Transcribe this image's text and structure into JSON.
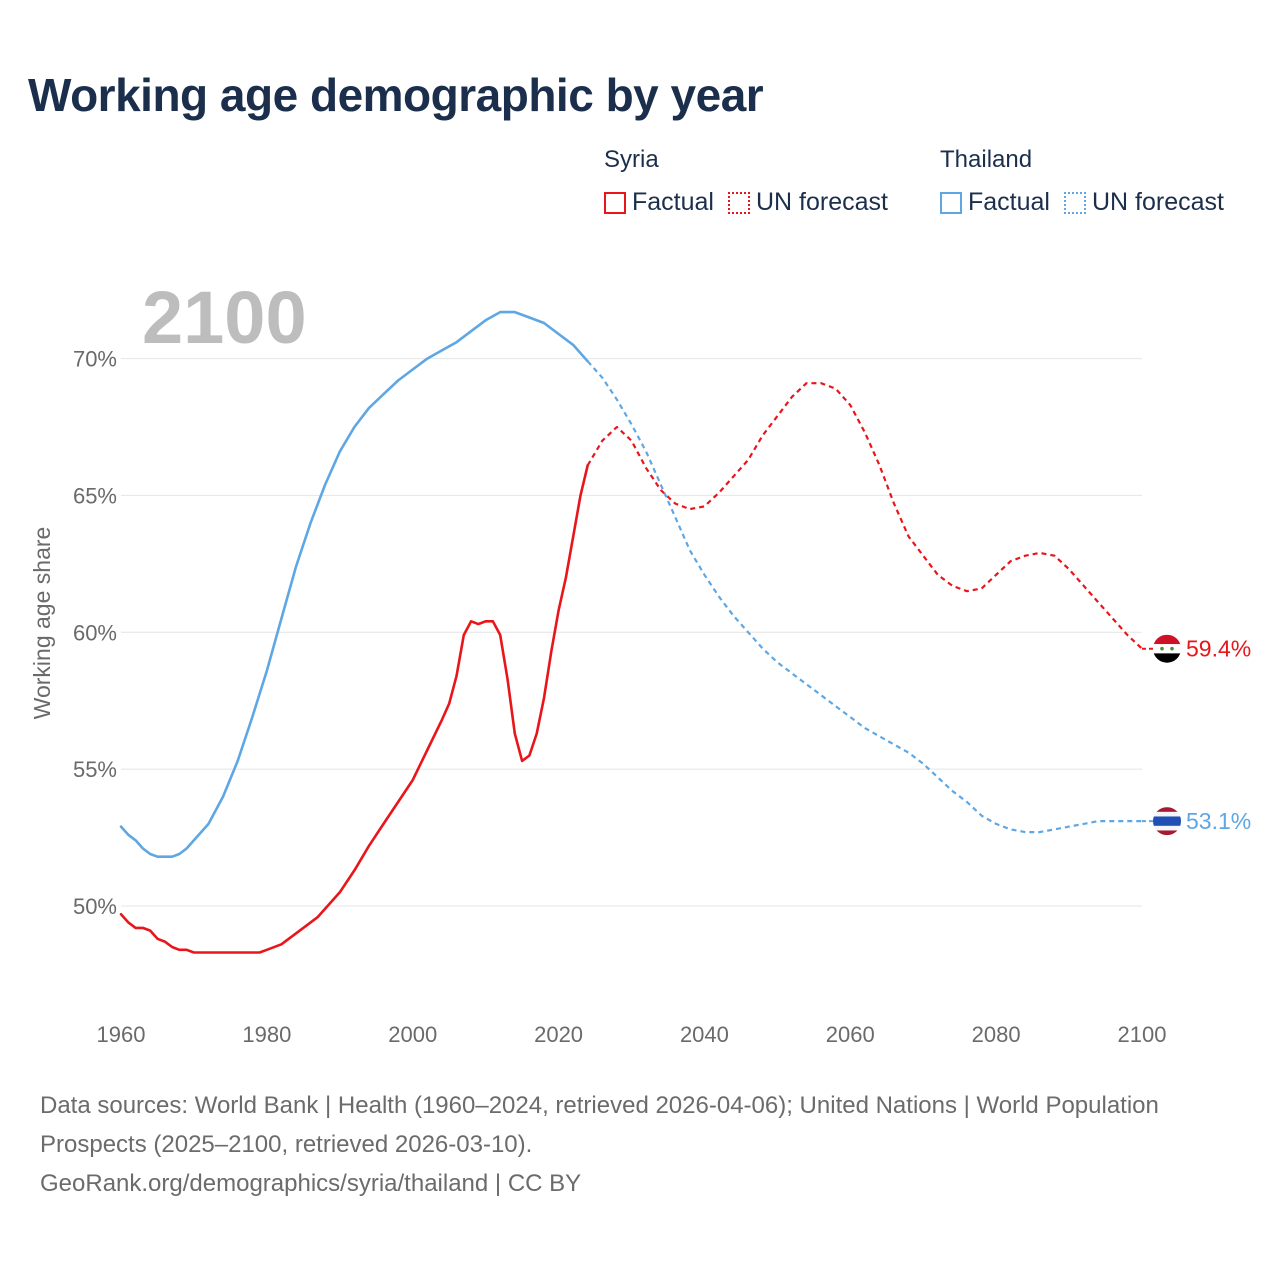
{
  "title": "Working age demographic by year",
  "legend": [
    {
      "country": "Syria",
      "color": "#e8161b",
      "factual_label": "Factual",
      "forecast_label": "UN forecast"
    },
    {
      "country": "Thailand",
      "color": "#5ea7e4",
      "factual_label": "Factual",
      "forecast_label": "UN forecast"
    }
  ],
  "sources_text": "Data sources: World Bank | Health (1960–2024, retrieved 2026-04-06); United Nations | World Population Prospects (2025–2100, retrieved 2026-03-10).",
  "url_text": "GeoRank.org/demographics/syria/thailand | CC BY",
  "chart_data": {
    "type": "line",
    "year_label": "2100",
    "ylabel": "Working age share",
    "xlim": [
      1960,
      2100
    ],
    "ylim": [
      46.2,
      73.2
    ],
    "x_ticks": [
      1960,
      1980,
      2000,
      2020,
      2040,
      2060,
      2080,
      2100
    ],
    "y_ticks": [
      50,
      55,
      60,
      65,
      70
    ],
    "y_tick_labels": [
      "50%",
      "55%",
      "60%",
      "65%",
      "70%"
    ],
    "forecast_start": 2024,
    "grid": true,
    "series": [
      {
        "name": "Syria",
        "color": "#e8161b",
        "end_label": "59.4%",
        "flag": "syria-flag-icon",
        "points": [
          [
            1960,
            49.7
          ],
          [
            1961,
            49.4
          ],
          [
            1962,
            49.2
          ],
          [
            1963,
            49.2
          ],
          [
            1964,
            49.1
          ],
          [
            1965,
            48.8
          ],
          [
            1966,
            48.7
          ],
          [
            1967,
            48.5
          ],
          [
            1968,
            48.4
          ],
          [
            1969,
            48.4
          ],
          [
            1970,
            48.3
          ],
          [
            1972,
            48.3
          ],
          [
            1975,
            48.3
          ],
          [
            1979,
            48.3
          ],
          [
            1980,
            48.4
          ],
          [
            1982,
            48.6
          ],
          [
            1985,
            49.2
          ],
          [
            1987,
            49.6
          ],
          [
            1990,
            50.5
          ],
          [
            1992,
            51.3
          ],
          [
            1994,
            52.2
          ],
          [
            1996,
            53.0
          ],
          [
            1998,
            53.8
          ],
          [
            2000,
            54.6
          ],
          [
            2002,
            55.7
          ],
          [
            2004,
            56.8
          ],
          [
            2005,
            57.4
          ],
          [
            2006,
            58.4
          ],
          [
            2007,
            59.9
          ],
          [
            2008,
            60.4
          ],
          [
            2009,
            60.3
          ],
          [
            2010,
            60.4
          ],
          [
            2011,
            60.4
          ],
          [
            2012,
            59.9
          ],
          [
            2013,
            58.3
          ],
          [
            2014,
            56.3
          ],
          [
            2015,
            55.3
          ],
          [
            2016,
            55.5
          ],
          [
            2017,
            56.3
          ],
          [
            2018,
            57.6
          ],
          [
            2019,
            59.3
          ],
          [
            2020,
            60.8
          ],
          [
            2021,
            62.0
          ],
          [
            2022,
            63.5
          ],
          [
            2023,
            65.0
          ],
          [
            2024,
            66.1
          ],
          [
            2026,
            67.0
          ],
          [
            2028,
            67.5
          ],
          [
            2030,
            67.0
          ],
          [
            2032,
            66.0
          ],
          [
            2034,
            65.2
          ],
          [
            2036,
            64.7
          ],
          [
            2038,
            64.5
          ],
          [
            2040,
            64.6
          ],
          [
            2042,
            65.1
          ],
          [
            2044,
            65.7
          ],
          [
            2046,
            66.3
          ],
          [
            2048,
            67.2
          ],
          [
            2050,
            67.9
          ],
          [
            2052,
            68.6
          ],
          [
            2054,
            69.1
          ],
          [
            2056,
            69.1
          ],
          [
            2058,
            68.9
          ],
          [
            2060,
            68.3
          ],
          [
            2062,
            67.3
          ],
          [
            2064,
            66.1
          ],
          [
            2066,
            64.7
          ],
          [
            2068,
            63.5
          ],
          [
            2070,
            62.8
          ],
          [
            2072,
            62.1
          ],
          [
            2074,
            61.7
          ],
          [
            2076,
            61.5
          ],
          [
            2078,
            61.6
          ],
          [
            2080,
            62.1
          ],
          [
            2082,
            62.6
          ],
          [
            2084,
            62.8
          ],
          [
            2086,
            62.9
          ],
          [
            2088,
            62.8
          ],
          [
            2090,
            62.3
          ],
          [
            2092,
            61.7
          ],
          [
            2094,
            61.1
          ],
          [
            2096,
            60.5
          ],
          [
            2098,
            59.9
          ],
          [
            2100,
            59.4
          ]
        ]
      },
      {
        "name": "Thailand",
        "color": "#5ea7e4",
        "end_label": "53.1%",
        "flag": "thailand-flag-icon",
        "points": [
          [
            1960,
            52.9
          ],
          [
            1961,
            52.6
          ],
          [
            1962,
            52.4
          ],
          [
            1963,
            52.1
          ],
          [
            1964,
            51.9
          ],
          [
            1965,
            51.8
          ],
          [
            1966,
            51.8
          ],
          [
            1967,
            51.8
          ],
          [
            1968,
            51.9
          ],
          [
            1969,
            52.1
          ],
          [
            1970,
            52.4
          ],
          [
            1972,
            53.0
          ],
          [
            1974,
            54.0
          ],
          [
            1976,
            55.3
          ],
          [
            1978,
            56.9
          ],
          [
            1980,
            58.6
          ],
          [
            1982,
            60.5
          ],
          [
            1984,
            62.4
          ],
          [
            1986,
            64.0
          ],
          [
            1988,
            65.4
          ],
          [
            1990,
            66.6
          ],
          [
            1992,
            67.5
          ],
          [
            1994,
            68.2
          ],
          [
            1996,
            68.7
          ],
          [
            1998,
            69.2
          ],
          [
            2000,
            69.6
          ],
          [
            2002,
            70.0
          ],
          [
            2004,
            70.3
          ],
          [
            2006,
            70.6
          ],
          [
            2008,
            71.0
          ],
          [
            2010,
            71.4
          ],
          [
            2012,
            71.7
          ],
          [
            2014,
            71.7
          ],
          [
            2016,
            71.5
          ],
          [
            2018,
            71.3
          ],
          [
            2020,
            70.9
          ],
          [
            2022,
            70.5
          ],
          [
            2024,
            69.9
          ],
          [
            2026,
            69.3
          ],
          [
            2028,
            68.5
          ],
          [
            2030,
            67.6
          ],
          [
            2032,
            66.6
          ],
          [
            2034,
            65.4
          ],
          [
            2036,
            64.2
          ],
          [
            2038,
            63.0
          ],
          [
            2040,
            62.1
          ],
          [
            2042,
            61.3
          ],
          [
            2044,
            60.6
          ],
          [
            2046,
            60.0
          ],
          [
            2048,
            59.4
          ],
          [
            2050,
            58.9
          ],
          [
            2052,
            58.5
          ],
          [
            2054,
            58.1
          ],
          [
            2056,
            57.7
          ],
          [
            2058,
            57.3
          ],
          [
            2060,
            56.9
          ],
          [
            2062,
            56.5
          ],
          [
            2064,
            56.2
          ],
          [
            2066,
            55.9
          ],
          [
            2068,
            55.6
          ],
          [
            2070,
            55.2
          ],
          [
            2072,
            54.7
          ],
          [
            2074,
            54.2
          ],
          [
            2076,
            53.8
          ],
          [
            2078,
            53.3
          ],
          [
            2080,
            53.0
          ],
          [
            2082,
            52.8
          ],
          [
            2084,
            52.7
          ],
          [
            2086,
            52.7
          ],
          [
            2088,
            52.8
          ],
          [
            2090,
            52.9
          ],
          [
            2092,
            53.0
          ],
          [
            2094,
            53.1
          ],
          [
            2096,
            53.1
          ],
          [
            2098,
            53.1
          ],
          [
            2100,
            53.1
          ]
        ]
      }
    ]
  }
}
